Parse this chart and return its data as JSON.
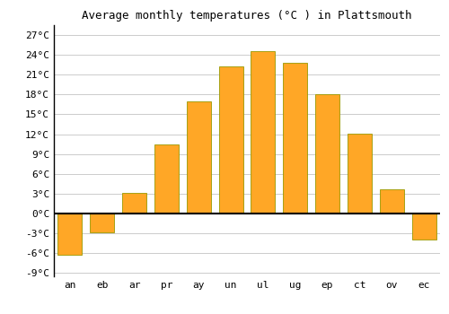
{
  "title": "Average monthly temperatures (°C ) in Plattsmouth",
  "months": [
    "an",
    "eb",
    "ar",
    "pr",
    "ay",
    "un",
    "ul",
    "ug",
    "ep",
    "ct",
    "ov",
    "ec"
  ],
  "values": [
    -6.3,
    -2.8,
    3.1,
    10.5,
    17.0,
    22.2,
    24.6,
    22.8,
    18.1,
    12.1,
    3.7,
    -3.9
  ],
  "bar_color": "#FFA726",
  "bar_edge_color": "#999900",
  "background_color": "#ffffff",
  "grid_color": "#cccccc",
  "yticks": [
    -9,
    -6,
    -3,
    0,
    3,
    6,
    9,
    12,
    15,
    18,
    21,
    24,
    27
  ],
  "ylim": [
    -9.5,
    28.5
  ],
  "title_fontsize": 9,
  "tick_fontsize": 8,
  "font_family": "monospace"
}
